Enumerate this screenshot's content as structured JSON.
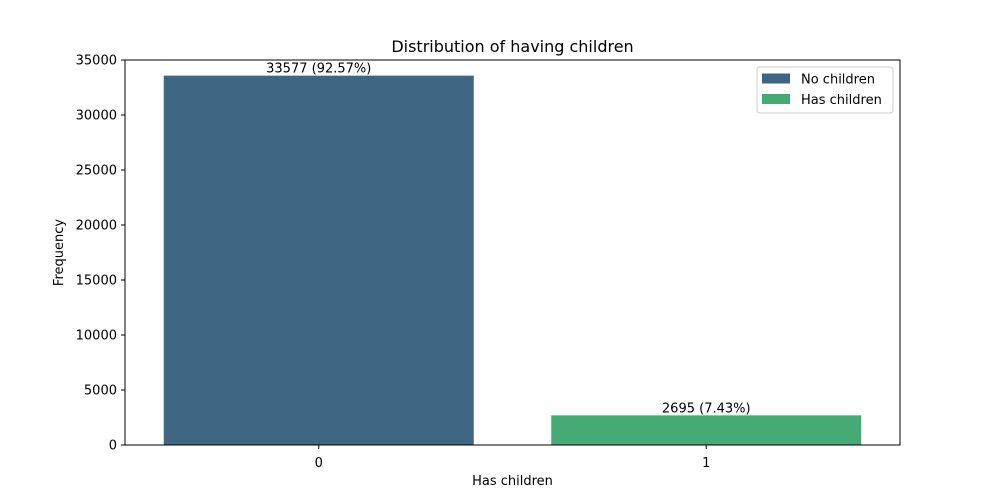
{
  "chart_data": {
    "type": "bar",
    "title": "Distribution of having children",
    "xlabel": "Has children",
    "ylabel": "Frequency",
    "categories": [
      "0",
      "1"
    ],
    "values": [
      33577,
      2695
    ],
    "data_labels": [
      "33577 (92.57%)",
      "2695 (7.43%)"
    ],
    "ylim": [
      0,
      35000
    ],
    "yticks": [
      0,
      5000,
      10000,
      15000,
      20000,
      25000,
      30000,
      35000
    ],
    "bar_colors": [
      "#3e6682",
      "#45aa74"
    ],
    "grid": false,
    "legend": {
      "placement": "top-right",
      "entries": [
        {
          "label": "No children",
          "color": "#3e6682"
        },
        {
          "label": "Has children",
          "color": "#45aa74"
        }
      ]
    }
  }
}
